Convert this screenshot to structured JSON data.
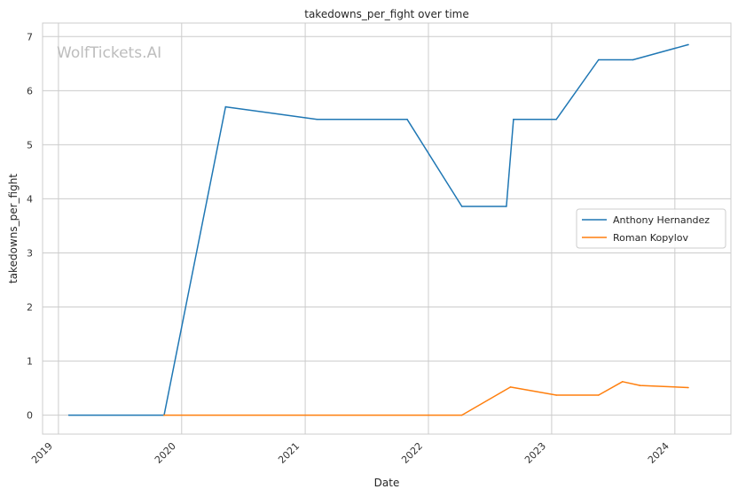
{
  "chart_data": {
    "type": "line",
    "title": "takedowns_per_fight over time",
    "xlabel": "Date",
    "ylabel": "takedowns_per_fight",
    "watermark": "WolfTickets.AI",
    "x_ticks": [
      "2019",
      "2020",
      "2021",
      "2022",
      "2023",
      "2024"
    ],
    "y_ticks": [
      "0",
      "1",
      "2",
      "3",
      "4",
      "5",
      "6",
      "7"
    ],
    "ylim": [
      -0.35,
      7.25
    ],
    "xlim": [
      "2018-11-15",
      "2024-06-15"
    ],
    "grid": true,
    "legend_position": "center-right",
    "series": [
      {
        "name": "Anthony Hernandez",
        "color": "#1f77b4",
        "x": [
          "2019-02-01",
          "2019-11-10",
          "2020-05-10",
          "2021-02-05",
          "2021-10-30",
          "2022-04-10",
          "2022-08-20",
          "2022-09-10",
          "2023-01-15",
          "2023-05-20",
          "2023-08-30",
          "2024-02-10"
        ],
        "y": [
          0.0,
          0.0,
          5.7,
          5.47,
          5.47,
          3.86,
          3.86,
          5.47,
          5.47,
          6.57,
          6.57,
          6.85
        ]
      },
      {
        "name": "Roman Kopylov",
        "color": "#ff7f0e",
        "x": [
          "2019-11-10",
          "2022-04-10",
          "2022-09-01",
          "2023-01-15",
          "2023-05-20",
          "2023-07-30",
          "2023-09-20",
          "2024-02-10"
        ],
        "y": [
          0.0,
          0.0,
          0.52,
          0.37,
          0.37,
          0.62,
          0.55,
          0.51
        ]
      }
    ]
  }
}
